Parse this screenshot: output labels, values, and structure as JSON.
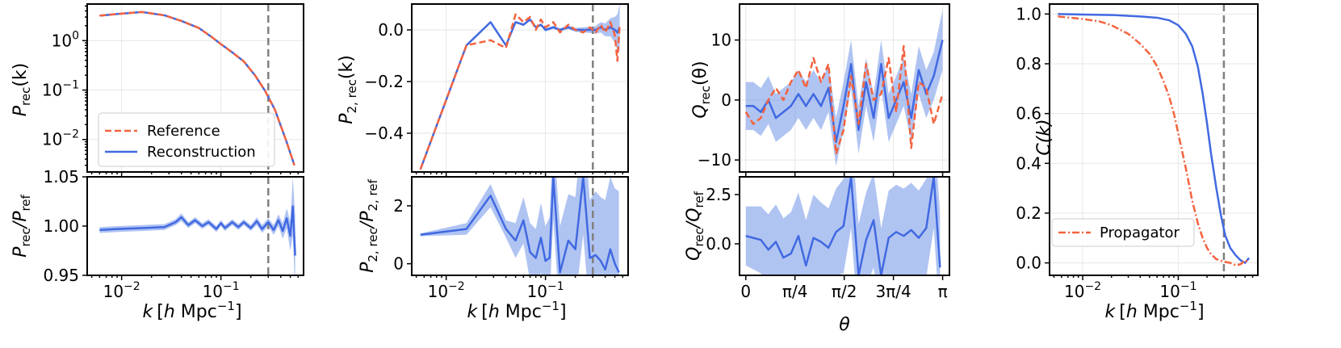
{
  "chart_data": [
    {
      "type": "line",
      "panel": "P_rec upper",
      "ylabel": "P_rec(k)",
      "xscale": "log",
      "yscale": "log",
      "xlim": [
        0.0045,
        0.68
      ],
      "ylim": [
        0.0022,
        5.5
      ],
      "yticks": [
        0.01,
        0.1,
        1
      ],
      "ytick_labels": [
        "10^-2",
        "10^-1",
        "10^0"
      ],
      "vline": 0.3,
      "grid": true,
      "legend": "lower-left",
      "series": [
        {
          "name": "Reference",
          "style": "dashed",
          "color": "#f4633f",
          "x": [
            0.006,
            0.009,
            0.016,
            0.027,
            0.04,
            0.06,
            0.08,
            0.1,
            0.13,
            0.17,
            0.22,
            0.28,
            0.35,
            0.45,
            0.55
          ],
          "y": [
            3.2,
            3.45,
            3.8,
            3.25,
            2.5,
            1.8,
            1.2,
            0.85,
            0.58,
            0.38,
            0.2,
            0.095,
            0.04,
            0.01,
            0.003
          ]
        },
        {
          "name": "Reconstruction",
          "style": "solid",
          "color": "#4169e1",
          "x": [
            0.006,
            0.009,
            0.016,
            0.027,
            0.04,
            0.06,
            0.08,
            0.1,
            0.13,
            0.17,
            0.22,
            0.28,
            0.35,
            0.45,
            0.55
          ],
          "y": [
            3.2,
            3.45,
            3.8,
            3.25,
            2.5,
            1.8,
            1.2,
            0.85,
            0.58,
            0.38,
            0.2,
            0.095,
            0.04,
            0.01,
            0.003
          ]
        }
      ]
    },
    {
      "type": "line",
      "panel": "P_rec ratio",
      "ylabel": "P_rec/P_ref",
      "xlabel": "k [h Mpc^-1]",
      "xscale": "log",
      "xlim": [
        0.0045,
        0.68
      ],
      "ylim": [
        0.95,
        1.05
      ],
      "yticks": [
        0.95,
        1.0,
        1.05
      ],
      "ytick_labels": [
        "0.95",
        "1.00",
        "1.05"
      ],
      "xticks": [
        0.01,
        0.1
      ],
      "xtick_labels": [
        "10^-2",
        "10^-1"
      ],
      "vline": 0.3,
      "series": [
        {
          "name": "",
          "color": "#4169e1",
          "x": [
            0.006,
            0.009,
            0.016,
            0.027,
            0.035,
            0.04,
            0.047,
            0.055,
            0.065,
            0.075,
            0.09,
            0.1,
            0.11,
            0.13,
            0.15,
            0.17,
            0.2,
            0.23,
            0.26,
            0.3,
            0.34,
            0.38,
            0.42,
            0.46,
            0.5,
            0.53,
            0.56
          ],
          "y": [
            0.996,
            0.997,
            0.998,
            0.999,
            1.004,
            1.009,
            1.001,
            1.006,
            1.0,
            1.004,
            0.997,
            1.003,
            0.998,
            1.004,
            0.999,
            1.004,
            0.998,
            1.005,
            0.997,
            1.004,
            0.996,
            1.006,
            0.995,
            1.008,
            0.99,
            1.02,
            0.97
          ],
          "band": [
            0.003,
            0.003,
            0.003,
            0.003,
            0.003,
            0.004,
            0.003,
            0.003,
            0.003,
            0.003,
            0.003,
            0.003,
            0.003,
            0.003,
            0.003,
            0.003,
            0.003,
            0.004,
            0.004,
            0.004,
            0.005,
            0.006,
            0.008,
            0.01,
            0.015,
            0.03,
            0.04
          ]
        }
      ]
    },
    {
      "type": "line",
      "panel": "P2_rec upper",
      "ylabel": "P_2,rec(k)",
      "xscale": "log",
      "xlim": [
        0.0045,
        0.68
      ],
      "ylim": [
        -0.55,
        0.1
      ],
      "yticks": [
        -0.4,
        -0.2,
        0.0
      ],
      "ytick_labels": [
        "−0.4",
        "−0.2",
        "0.0"
      ],
      "vline": 0.3,
      "grid": true,
      "series": [
        {
          "name": "Reference",
          "style": "dashed",
          "color": "#f4633f",
          "x": [
            0.0055,
            0.016,
            0.028,
            0.04,
            0.05,
            0.06,
            0.07,
            0.08,
            0.09,
            0.1,
            0.12,
            0.14,
            0.17,
            0.2,
            0.24,
            0.28,
            0.32,
            0.36,
            0.4,
            0.45,
            0.5,
            0.53,
            0.56
          ],
          "y": [
            -0.54,
            -0.06,
            -0.04,
            -0.07,
            0.06,
            0.03,
            0.05,
            0.0,
            0.04,
            0.01,
            0.03,
            -0.01,
            0.02,
            0.0,
            -0.01,
            0.01,
            -0.01,
            0.02,
            -0.01,
            0.03,
            -0.02,
            -0.12,
            0.02
          ]
        },
        {
          "name": "Reconstruction",
          "style": "solid",
          "color": "#4169e1",
          "x": [
            0.0055,
            0.016,
            0.028,
            0.04,
            0.05,
            0.06,
            0.07,
            0.08,
            0.09,
            0.1,
            0.12,
            0.14,
            0.17,
            0.2,
            0.24,
            0.28,
            0.32,
            0.36,
            0.4,
            0.45,
            0.5,
            0.53,
            0.56
          ],
          "y": [
            -0.54,
            -0.06,
            0.03,
            -0.06,
            0.03,
            0.02,
            0.04,
            0.01,
            0.02,
            0.0,
            0.01,
            0.0,
            0.01,
            0.0,
            0.0,
            0.0,
            0.0,
            0.01,
            0.0,
            0.01,
            0.0,
            -0.01,
            0.01
          ],
          "band": [
            0.004,
            0.004,
            0.004,
            0.004,
            0.004,
            0.005,
            0.005,
            0.005,
            0.005,
            0.006,
            0.006,
            0.006,
            0.007,
            0.008,
            0.01,
            0.012,
            0.015,
            0.02,
            0.025,
            0.035,
            0.05,
            0.07,
            0.09
          ]
        }
      ]
    },
    {
      "type": "line",
      "panel": "P2_rec ratio",
      "ylabel": "P_2,rec/P_2,ref",
      "xlabel": "k [h Mpc^-1]",
      "xscale": "log",
      "xlim": [
        0.0045,
        0.68
      ],
      "ylim": [
        -0.4,
        3.0
      ],
      "yticks": [
        0,
        2
      ],
      "ytick_labels": [
        "0",
        "2"
      ],
      "xticks": [
        0.01,
        0.1
      ],
      "xtick_labels": [
        "10^-2",
        "10^-1"
      ],
      "vline": 0.3,
      "series": [
        {
          "name": "",
          "color": "#4169e1",
          "x": [
            0.0055,
            0.016,
            0.028,
            0.04,
            0.05,
            0.06,
            0.07,
            0.08,
            0.09,
            0.1,
            0.11,
            0.12,
            0.14,
            0.17,
            0.2,
            0.24,
            0.28,
            0.32,
            0.36,
            0.4,
            0.45,
            0.5,
            0.55
          ],
          "y": [
            1.0,
            1.2,
            2.35,
            1.2,
            0.8,
            1.5,
            0.4,
            0.2,
            0.9,
            0.1,
            0.2,
            3.0,
            -0.3,
            0.8,
            0.5,
            3.0,
            0.2,
            0.3,
            0.1,
            -0.2,
            0.5,
            0.0,
            -0.3
          ],
          "band": [
            0.05,
            0.2,
            0.4,
            0.3,
            0.6,
            0.8,
            1.0,
            1.0,
            1.2,
            1.2,
            1.4,
            1.5,
            1.6,
            1.6,
            1.8,
            2.0,
            2.0,
            2.2,
            2.2,
            2.4,
            2.5,
            2.6,
            2.8
          ]
        }
      ]
    },
    {
      "type": "line",
      "panel": "Q_rec upper",
      "ylabel": "Q_rec(θ)",
      "xlim": [
        -0.1,
        3.25
      ],
      "ylim": [
        -12,
        16
      ],
      "yticks": [
        -10,
        0,
        10
      ],
      "ytick_labels": [
        "−10",
        "0",
        "10"
      ],
      "grid": true,
      "series": [
        {
          "name": "Reference",
          "style": "dashed",
          "color": "#f4633f",
          "x": [
            0.0,
            0.12,
            0.24,
            0.36,
            0.48,
            0.6,
            0.72,
            0.84,
            0.96,
            1.08,
            1.2,
            1.32,
            1.44,
            1.56,
            1.68,
            1.8,
            1.92,
            2.04,
            2.16,
            2.28,
            2.4,
            2.52,
            2.64,
            2.76,
            2.88,
            3.0,
            3.14
          ],
          "y": [
            -2,
            -4,
            -3,
            0,
            2,
            0,
            3,
            5,
            2,
            7,
            3,
            6,
            -9,
            -5,
            4,
            -4,
            6,
            0,
            1,
            7,
            -2,
            9,
            -8,
            3,
            2,
            -4,
            1
          ]
        },
        {
          "name": "Reconstruction",
          "style": "solid",
          "color": "#4169e1",
          "x": [
            0.0,
            0.12,
            0.24,
            0.36,
            0.48,
            0.6,
            0.72,
            0.84,
            0.96,
            1.08,
            1.2,
            1.32,
            1.44,
            1.56,
            1.68,
            1.8,
            1.92,
            2.04,
            2.16,
            2.28,
            2.4,
            2.52,
            2.64,
            2.76,
            2.88,
            3.0,
            3.14
          ],
          "y": [
            -1,
            -1,
            -2,
            0,
            -3,
            -2,
            -1,
            1,
            -1,
            1,
            -1,
            2,
            -7,
            -1,
            6,
            -5,
            3,
            -3,
            6,
            -3,
            0,
            3,
            -3,
            5,
            1,
            4,
            10
          ],
          "band": [
            4,
            4,
            4,
            4,
            4,
            4,
            4,
            4,
            4,
            4,
            4,
            4,
            4,
            4,
            4,
            4,
            4,
            4,
            4,
            4,
            4,
            4,
            4,
            4,
            4,
            4,
            5
          ]
        }
      ]
    },
    {
      "type": "line",
      "panel": "Q_rec ratio",
      "ylabel": "Q_rec/Q_ref",
      "xlabel": "θ",
      "xlim": [
        -0.1,
        3.25
      ],
      "ylim": [
        -1.6,
        3.4
      ],
      "yticks": [
        0.0,
        2.5
      ],
      "ytick_labels": [
        "0.0",
        "2.5"
      ],
      "xticks": [
        0,
        0.785,
        1.571,
        2.356,
        3.1416
      ],
      "xtick_labels": [
        "0",
        "π/4",
        "π/2",
        "3π/4",
        "π"
      ],
      "series": [
        {
          "name": "",
          "color": "#4169e1",
          "x": [
            0.0,
            0.12,
            0.24,
            0.36,
            0.48,
            0.6,
            0.72,
            0.84,
            0.96,
            1.08,
            1.2,
            1.32,
            1.44,
            1.56,
            1.68,
            1.8,
            1.92,
            2.04,
            2.16,
            2.28,
            2.4,
            2.52,
            2.64,
            2.76,
            2.88,
            3.0,
            3.1
          ],
          "y": [
            0.4,
            0.3,
            0.2,
            -0.3,
            0.1,
            -0.7,
            -0.5,
            0.4,
            -1.1,
            0.3,
            0.1,
            -0.2,
            0.6,
            0.9,
            3.4,
            -1.6,
            0.2,
            1.2,
            -1.6,
            0.3,
            0.6,
            0.4,
            0.7,
            0.3,
            0.8,
            3.4,
            -1.2
          ],
          "band": [
            1.5,
            1.6,
            1.7,
            1.8,
            1.9,
            2.0,
            2.1,
            2.2,
            2.3,
            2.2,
            2.0,
            2.0,
            2.2,
            2.4,
            2.6,
            2.6,
            2.4,
            2.4,
            2.4,
            2.4,
            2.4,
            2.4,
            2.4,
            2.4,
            2.5,
            2.6,
            2.8
          ]
        }
      ]
    },
    {
      "type": "line",
      "panel": "Cross-correlation",
      "ylabel": "C(k)",
      "xlabel": "k [h Mpc^-1]",
      "xscale": "log",
      "xlim": [
        0.0045,
        0.68
      ],
      "ylim": [
        -0.05,
        1.04
      ],
      "yticks": [
        0.0,
        0.2,
        0.4,
        0.6,
        0.8,
        1.0
      ],
      "ytick_labels": [
        "0.0",
        "0.2",
        "0.4",
        "0.6",
        "0.8",
        "1.0"
      ],
      "xticks": [
        0.01,
        0.1
      ],
      "xtick_labels": [
        "10^-2",
        "10^-1"
      ],
      "vline": 0.3,
      "grid": true,
      "legend": "lower-left",
      "series": [
        {
          "name": "",
          "style": "solid",
          "color": "#4169e1",
          "x": [
            0.0055,
            0.01,
            0.02,
            0.04,
            0.06,
            0.08,
            0.1,
            0.12,
            0.14,
            0.16,
            0.18,
            0.2,
            0.22,
            0.25,
            0.28,
            0.31,
            0.35,
            0.4,
            0.45,
            0.5,
            0.55
          ],
          "y": [
            1.0,
            0.998,
            0.996,
            0.99,
            0.985,
            0.975,
            0.955,
            0.92,
            0.87,
            0.79,
            0.68,
            0.56,
            0.44,
            0.3,
            0.19,
            0.11,
            0.06,
            0.03,
            0.01,
            0.0,
            0.02
          ]
        },
        {
          "name": "Propagator",
          "style": "dashdot",
          "color": "#f4633f",
          "x": [
            0.0055,
            0.01,
            0.015,
            0.02,
            0.03,
            0.04,
            0.05,
            0.06,
            0.07,
            0.08,
            0.09,
            0.1,
            0.12,
            0.14,
            0.16,
            0.18,
            0.2,
            0.22,
            0.25,
            0.3,
            0.35,
            0.4,
            0.45,
            0.5,
            0.55
          ],
          "y": [
            0.99,
            0.98,
            0.97,
            0.955,
            0.92,
            0.88,
            0.84,
            0.79,
            0.73,
            0.67,
            0.6,
            0.52,
            0.38,
            0.25,
            0.16,
            0.1,
            0.06,
            0.035,
            0.015,
            0.005,
            0.0,
            -0.01,
            -0.005,
            0.01,
            0.0
          ]
        }
      ]
    }
  ],
  "labels": {
    "p_upper_ylabel": {
      "base": "P",
      "sub": "rec",
      "tail": "(k)"
    },
    "p_lower_ylabel": {
      "a": "P",
      "a_sub": "rec",
      "b": "/P",
      "b_sub": "ref"
    },
    "p2_upper_ylabel": {
      "base": "P",
      "sub": "2, rec",
      "tail": "(k)"
    },
    "p2_lower_ylabel": {
      "a": "P",
      "a_sub": "2, rec",
      "b": "/P",
      "b_sub": "2, ref"
    },
    "q_upper_ylabel": {
      "base": "Q",
      "sub": "rec",
      "tail": "(θ)"
    },
    "q_lower_ylabel": {
      "a": "Q",
      "a_sub": "rec",
      "b": "/Q",
      "b_sub": "ref"
    },
    "c_ylabel": "C(k)",
    "k_xlabel": {
      "k": "k",
      "open": "[",
      "h": "h",
      "unit": " Mpc",
      "exp": "−1",
      "close": "]"
    },
    "theta_xlabel": "θ",
    "legend_reference": "Reference",
    "legend_reconstruction": "Reconstruction",
    "legend_propagator": "Propagator"
  },
  "colors": {
    "reference": "#f4633f",
    "reconstruction": "#4169e1",
    "band": "#6f93e8",
    "vline": "#808080"
  }
}
